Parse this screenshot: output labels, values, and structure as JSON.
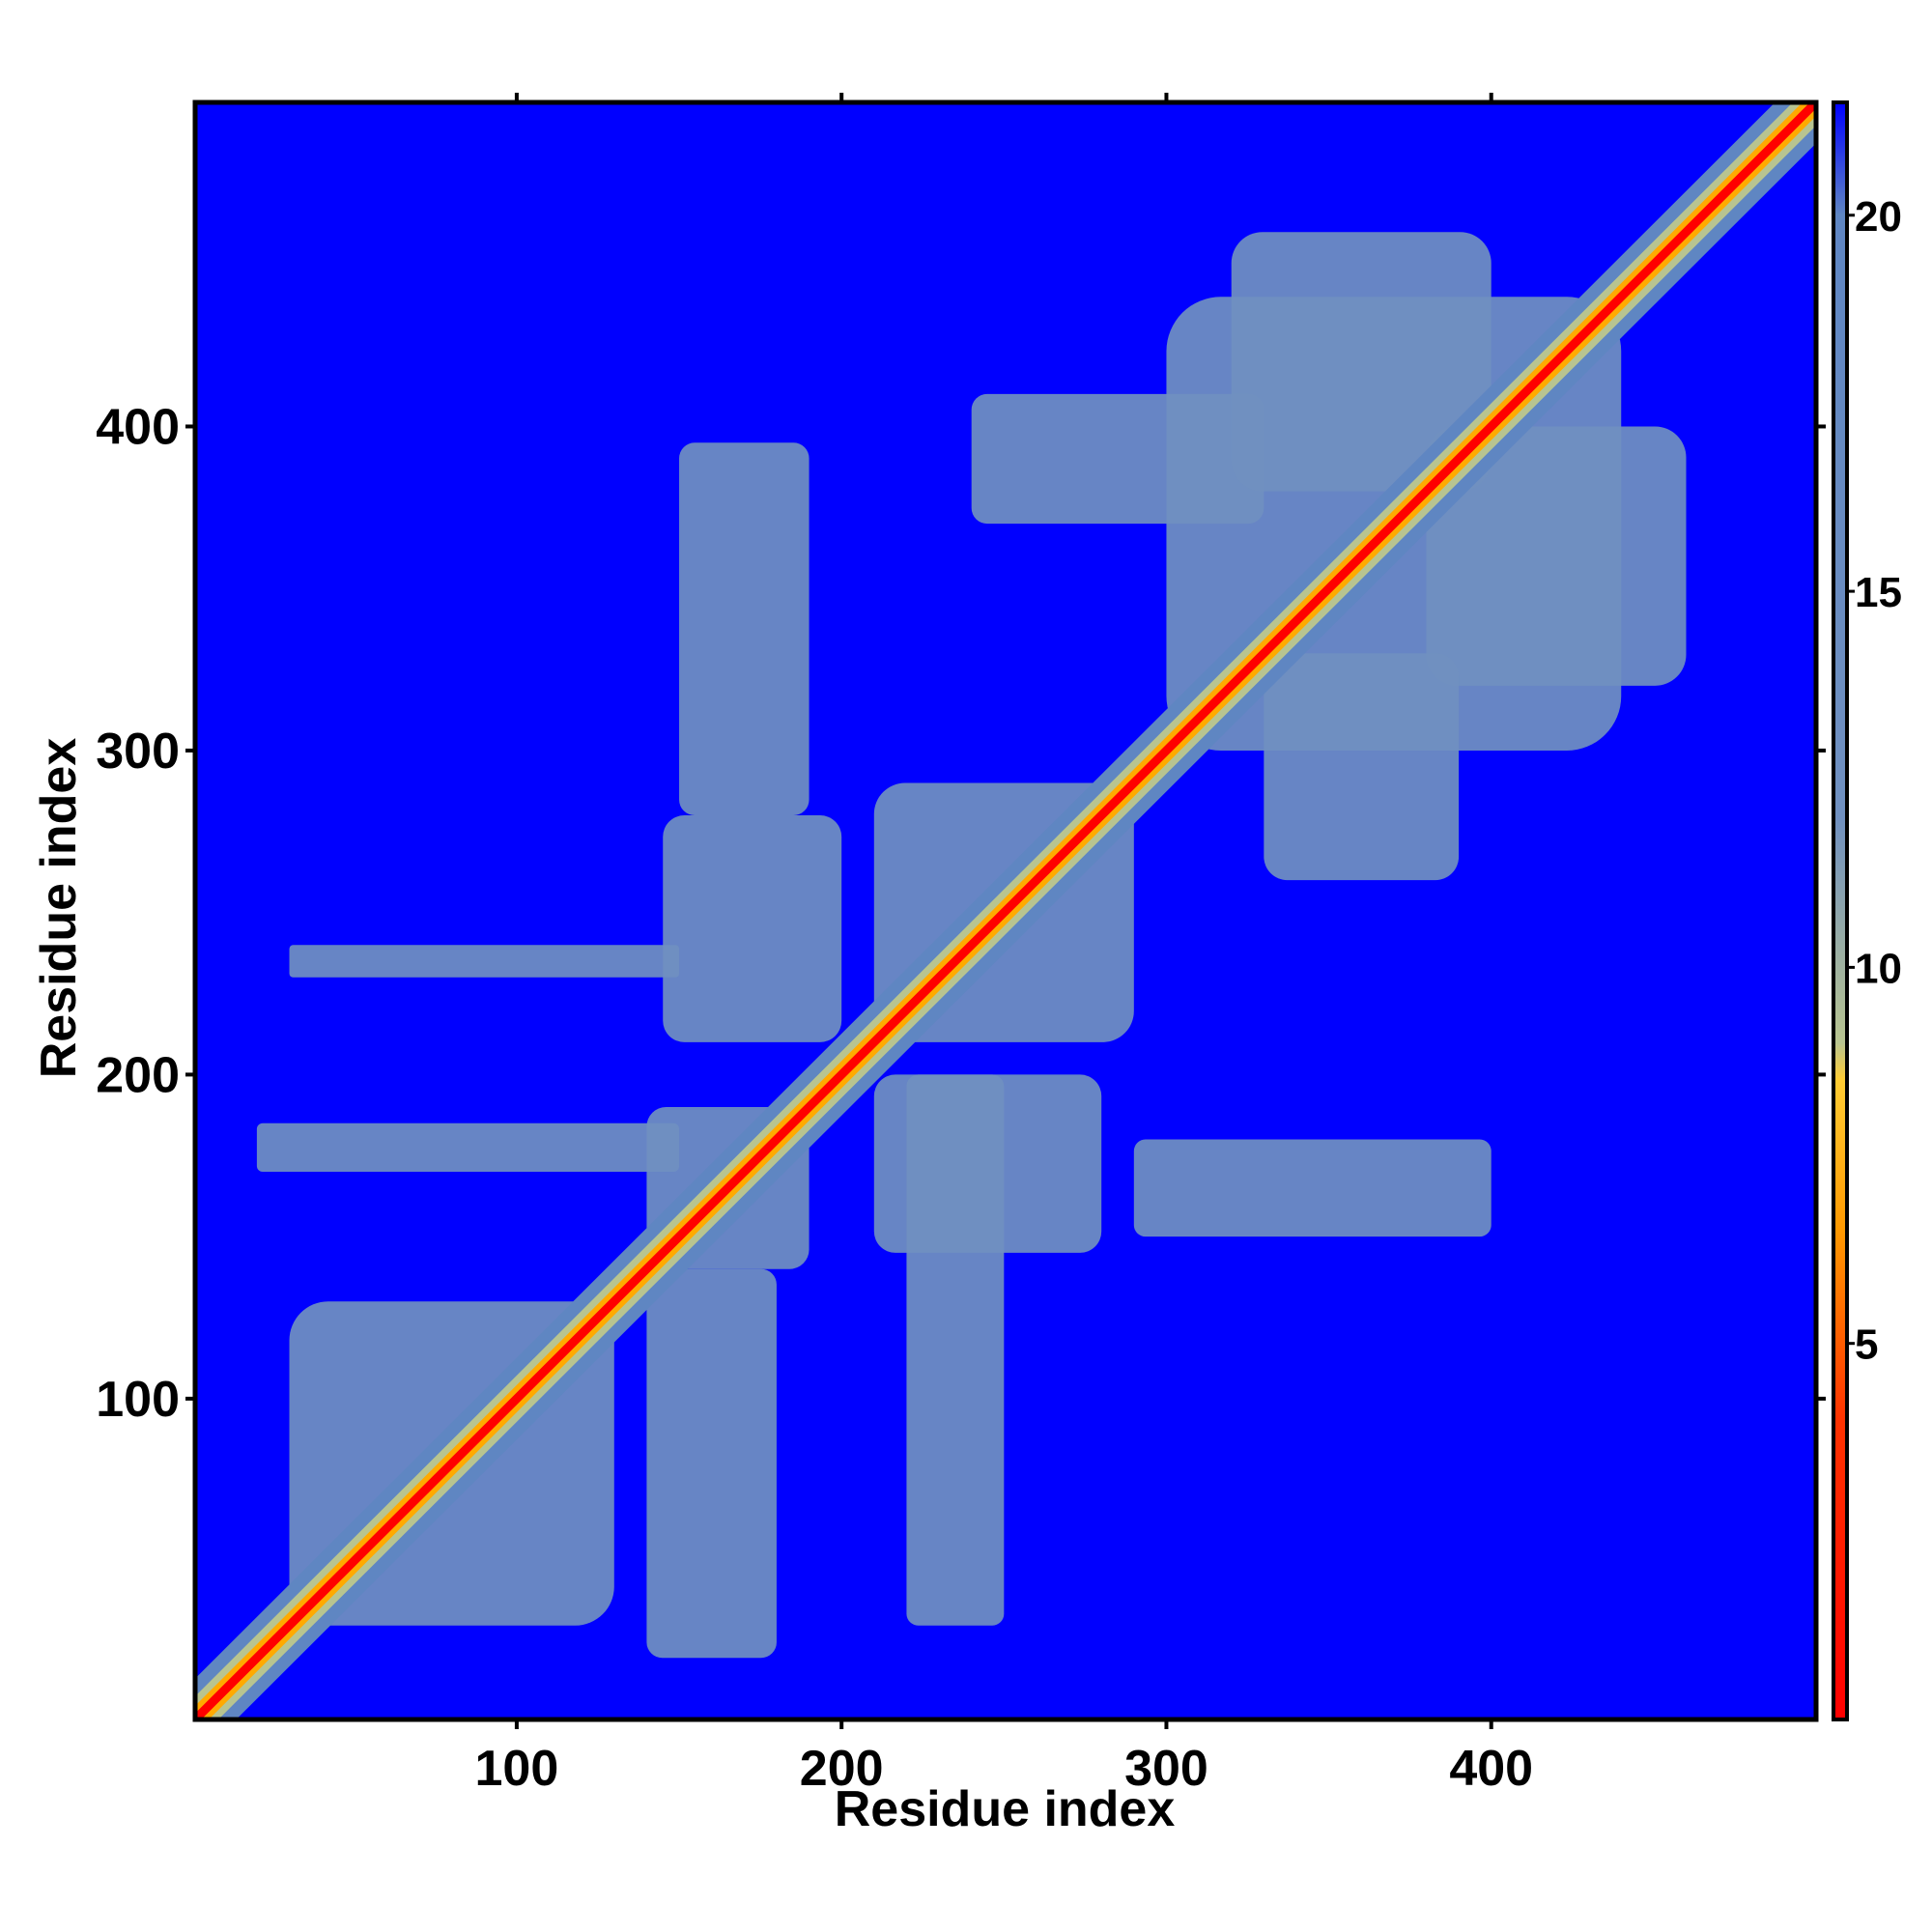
{
  "chart_data": {
    "type": "heatmap",
    "title": "",
    "xlabel": "Residue index",
    "ylabel": "Residue index",
    "xlim": [
      1,
      500
    ],
    "ylim": [
      1,
      500
    ],
    "x_ticks": [
      100,
      200,
      300,
      400
    ],
    "y_ticks": [
      100,
      200,
      300,
      400
    ],
    "x_tick_labels": [
      "100",
      "200",
      "300",
      "400"
    ],
    "y_tick_labels": [
      "100",
      "200",
      "300",
      "400"
    ],
    "grid": false,
    "legend": "none",
    "colorbar": {
      "placement": "right",
      "range": [
        0,
        21.5
      ],
      "ticks": [
        5,
        10,
        15,
        20
      ],
      "tick_labels": [
        "5",
        "10",
        "15",
        "20"
      ],
      "stops": [
        {
          "value": 0,
          "color": "#ff0000"
        },
        {
          "value": 4,
          "color": "#ff3300"
        },
        {
          "value": 6.5,
          "color": "#ff9900"
        },
        {
          "value": 8.5,
          "color": "#ffcc33"
        },
        {
          "value": 9,
          "color": "#b8c490"
        },
        {
          "value": 12,
          "color": "#7090c0"
        },
        {
          "value": 20,
          "color": "#5f86c2"
        },
        {
          "value": 21.5,
          "color": "#0000ff"
        }
      ]
    },
    "colors": {
      "background_value_color": "#0000ff",
      "diagonal_color": "#ff0000",
      "near_diagonal_color": "#ffaa00",
      "contact_color": "#5f86c2",
      "frame": "#000000"
    },
    "diagonal": {
      "from": 1,
      "to": 500,
      "value": 0
    },
    "contact_regions": [
      {
        "x": [
          30,
          130
        ],
        "y": [
          30,
          130
        ],
        "value": 14
      },
      {
        "x": [
          140,
          190
        ],
        "y": [
          140,
          190
        ],
        "value": 14
      },
      {
        "x": [
          210,
          290
        ],
        "y": [
          210,
          290
        ],
        "value": 14
      },
      {
        "x": [
          300,
          440
        ],
        "y": [
          300,
          440
        ],
        "value": 14
      },
      {
        "x": [
          145,
          200
        ],
        "y": [
          210,
          280
        ],
        "value": 16
      },
      {
        "x": [
          210,
          280
        ],
        "y": [
          145,
          200
        ],
        "value": 16
      },
      {
        "x": [
          150,
          190
        ],
        "y": [
          280,
          395
        ],
        "value": 18
      },
      {
        "x": [
          220,
          250
        ],
        "y": [
          30,
          200
        ],
        "value": 18
      },
      {
        "x": [
          30,
          150
        ],
        "y": [
          230,
          240
        ],
        "value": 18
      },
      {
        "x": [
          20,
          150
        ],
        "y": [
          170,
          185
        ],
        "value": 18
      },
      {
        "x": [
          290,
          400
        ],
        "y": [
          150,
          180
        ],
        "value": 18
      },
      {
        "x": [
          240,
          330
        ],
        "y": [
          370,
          410
        ],
        "value": 18
      },
      {
        "x": [
          380,
          460
        ],
        "y": [
          320,
          400
        ],
        "value": 17
      },
      {
        "x": [
          320,
          400
        ],
        "y": [
          380,
          460
        ],
        "value": 17
      },
      {
        "x": [
          330,
          390
        ],
        "y": [
          260,
          330
        ],
        "value": 18
      },
      {
        "x": [
          140,
          180
        ],
        "y": [
          20,
          140
        ],
        "value": 18
      }
    ]
  }
}
